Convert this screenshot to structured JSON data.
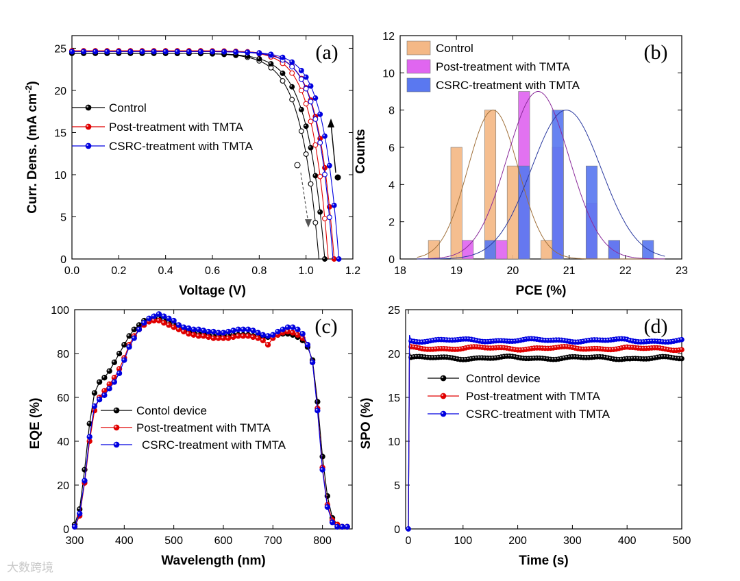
{
  "watermark": "大数跨境",
  "chart_data": [
    {
      "panel": "(a)",
      "type": "line",
      "xlabel": "Voltage (V)",
      "ylabel": "Curr. Dens. (mA cm-2)",
      "xlim": [
        0.0,
        1.2
      ],
      "ylim": [
        0,
        26.5
      ],
      "xticks": [
        "0.0",
        "0.2",
        "0.4",
        "0.6",
        "0.8",
        "1.0",
        "1.2"
      ],
      "yticks": [
        "0",
        "5",
        "10",
        "15",
        "20",
        "25"
      ],
      "legend_position": "middle-left",
      "series": [
        {
          "name": "Control",
          "color": "#000000",
          "jsc": 24.4,
          "voc": 1.08,
          "n": 3.0
        },
        {
          "name": "Post-treatment with TMTA",
          "color": "#e00000",
          "jsc": 24.7,
          "voc": 1.12,
          "n": 2.7
        },
        {
          "name": "CSRC-treatment with TMTA",
          "color": "#0000e0",
          "jsc": 24.6,
          "voc": 1.14,
          "n": 2.6
        }
      ],
      "voltage_points": [
        0.0,
        0.05,
        0.1,
        0.15,
        0.2,
        0.25,
        0.3,
        0.35,
        0.4,
        0.45,
        0.5,
        0.55,
        0.6,
        0.65,
        0.7,
        0.75,
        0.8,
        0.85,
        0.9,
        0.94,
        0.98,
        1.0,
        1.02,
        1.04,
        1.06,
        1.08,
        1.1,
        1.12,
        1.14
      ],
      "reverse_scan_label": "",
      "annotations": {
        "forward_marker": "open",
        "reverse_marker": "filled"
      }
    },
    {
      "panel": "(b)",
      "type": "bar",
      "xlabel": "PCE (%)",
      "ylabel": "Counts",
      "xlim": [
        18,
        23
      ],
      "ylim": [
        0,
        12
      ],
      "xticks": [
        "18",
        "19",
        "20",
        "21",
        "22",
        "23"
      ],
      "yticks": [
        "0",
        "2",
        "4",
        "6",
        "8",
        "10",
        "12"
      ],
      "legend_position": "top-left",
      "bar_width": 0.2,
      "series": [
        {
          "name": "Control",
          "color": "#f4b886",
          "fit_color": "#a0703a",
          "x": [
            18.6,
            19.0,
            19.6,
            20.0,
            20.6
          ],
          "values": [
            1,
            6,
            8,
            5,
            1
          ],
          "fit": {
            "mu": 19.65,
            "sigma": 0.45,
            "amp": 8.0
          }
        },
        {
          "name": "Post-treatment with TMTA",
          "color": "#e066f0",
          "fit_color": "#8a2a9a",
          "x": [
            19.2,
            19.8,
            20.2,
            20.8,
            21.4,
            21.8
          ],
          "values": [
            1,
            1,
            9,
            6,
            3,
            1
          ],
          "fit": {
            "mu": 20.45,
            "sigma": 0.55,
            "amp": 9.0
          }
        },
        {
          "name": "CSRC-treatment with TMTA",
          "color": "#5a78f0",
          "fit_color": "#2a3aa0",
          "x": [
            19.6,
            20.2,
            20.8,
            21.4,
            21.8,
            22.4
          ],
          "values": [
            1,
            5,
            8,
            5,
            1,
            1
          ],
          "fit": {
            "mu": 20.95,
            "sigma": 0.62,
            "amp": 8.0
          }
        }
      ]
    },
    {
      "panel": "(c)",
      "type": "line",
      "xlabel": "Wavelength (nm)",
      "ylabel": "EQE (%)",
      "xlim": [
        300,
        860
      ],
      "ylim": [
        0,
        100
      ],
      "xticks": [
        "300",
        "400",
        "500",
        "600",
        "700",
        "800"
      ],
      "yticks": [
        "0",
        "20",
        "40",
        "60",
        "80",
        "100"
      ],
      "legend_position": "middle-left",
      "x": [
        300,
        310,
        320,
        330,
        340,
        350,
        360,
        370,
        380,
        390,
        400,
        410,
        420,
        430,
        440,
        450,
        460,
        470,
        480,
        490,
        500,
        510,
        520,
        530,
        540,
        550,
        560,
        570,
        580,
        590,
        600,
        610,
        620,
        630,
        640,
        650,
        660,
        670,
        680,
        690,
        700,
        710,
        720,
        730,
        740,
        750,
        760,
        770,
        780,
        790,
        800,
        810,
        820,
        830,
        840,
        850
      ],
      "series": [
        {
          "name": "Contol device",
          "color": "#000000",
          "values": [
            2,
            9,
            27,
            48,
            62,
            67,
            69,
            72,
            76,
            80,
            84,
            88,
            91,
            93,
            95,
            95.5,
            96,
            96,
            95,
            94,
            93,
            92,
            91,
            90,
            89.5,
            89,
            89,
            88.5,
            88,
            88,
            88,
            88,
            88.5,
            88.5,
            88.5,
            88.5,
            88,
            88,
            87.5,
            87.5,
            88,
            88.5,
            89,
            89,
            88.5,
            87.5,
            86,
            83,
            77,
            58,
            33,
            15,
            5,
            2,
            1,
            1
          ]
        },
        {
          "name": "Post-treatment with TMTA",
          "color": "#e00000",
          "values": [
            1,
            6,
            21,
            40,
            54,
            60,
            63,
            66,
            69,
            73,
            78,
            84,
            88,
            91,
            93,
            94.5,
            95,
            95,
            94,
            93,
            92,
            91,
            90,
            89,
            88.5,
            88,
            88,
            87.5,
            87,
            87,
            87,
            87,
            87.5,
            88,
            88,
            88,
            87.5,
            87,
            86,
            84,
            87,
            88.5,
            89.5,
            90,
            89.5,
            88.5,
            87,
            84,
            76,
            55,
            28,
            11,
            4,
            2,
            1,
            1
          ]
        },
        {
          "name": "CSRC-treatment with TMTA",
          "color": "#0000e0",
          "values": [
            1,
            7,
            22,
            42,
            56,
            59,
            61,
            64,
            67,
            71,
            77,
            83,
            87,
            91,
            94,
            96,
            97,
            98,
            97,
            96,
            95,
            93,
            92,
            91.5,
            91,
            91,
            90.5,
            90,
            90,
            89.5,
            89.5,
            90,
            90.5,
            91,
            91,
            91,
            90.5,
            89.5,
            88.5,
            88,
            88.5,
            90,
            91,
            92,
            92,
            91,
            89,
            84,
            76,
            54,
            27,
            10,
            3,
            1,
            1,
            1
          ]
        }
      ]
    },
    {
      "panel": "(d)",
      "type": "line",
      "xlabel": "Time (s)",
      "ylabel": "SPO (%)",
      "xlim": [
        -5,
        500
      ],
      "ylim": [
        0,
        25
      ],
      "xticks": [
        "0",
        "100",
        "200",
        "300",
        "400",
        "500"
      ],
      "yticks": [
        "0",
        "5",
        "10",
        "15",
        "20",
        "25"
      ],
      "legend_position": "middle-left",
      "series": [
        {
          "name": "Control device",
          "color": "#000000",
          "plateau": 19.5
        },
        {
          "name": "Post-treatment with TMTA",
          "color": "#e00000",
          "plateau": 20.6
        },
        {
          "name": "CSRC-treatment with TMTA",
          "color": "#0000e0",
          "plateau": 21.5
        }
      ]
    }
  ],
  "panel_labels": [
    "(a)",
    "(b)",
    "(c)",
    "(d)"
  ]
}
